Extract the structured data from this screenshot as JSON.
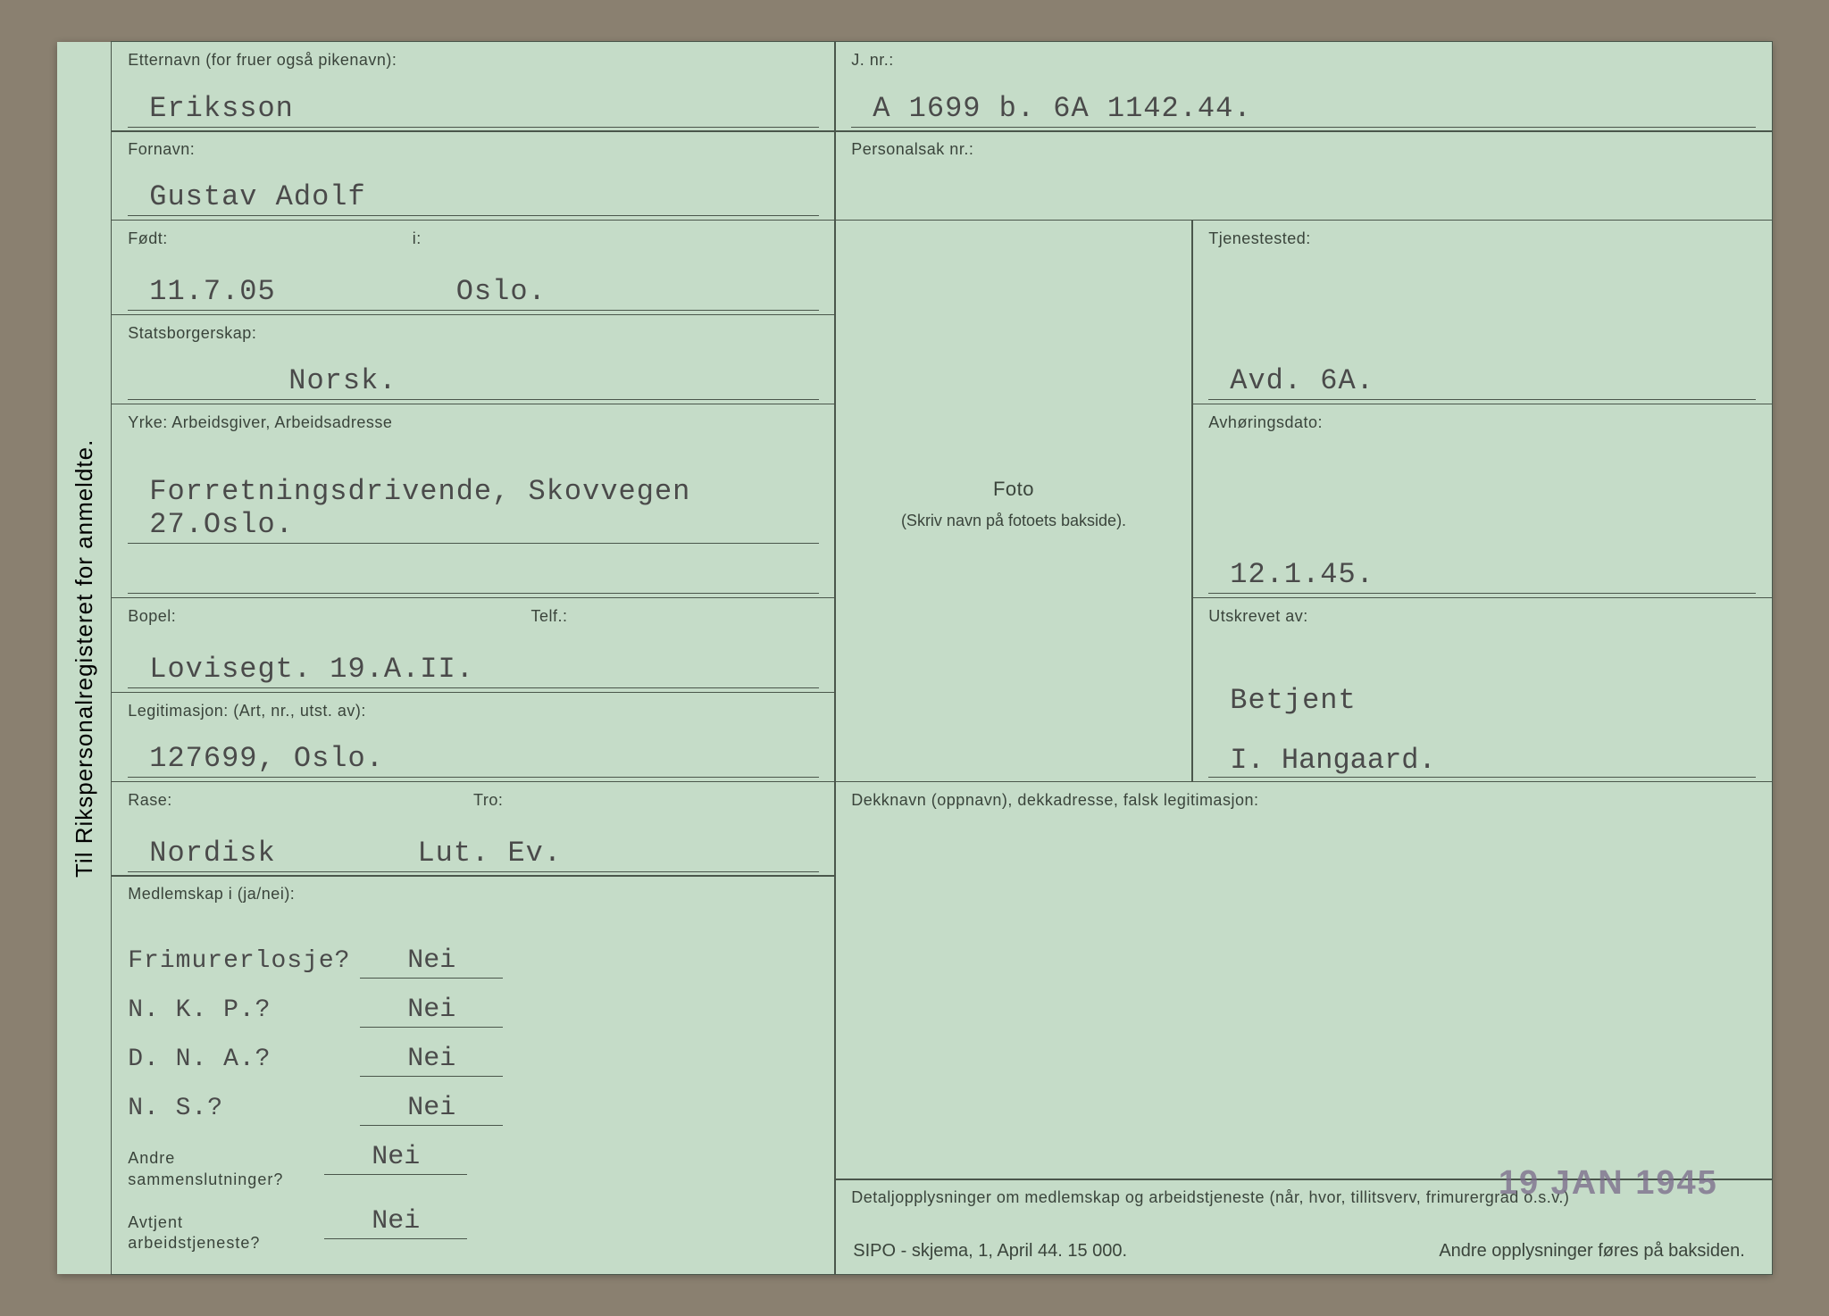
{
  "colors": {
    "card_bg": "#c5dcc8",
    "page_bg": "#8a8070",
    "rule": "#4a564b",
    "label_text": "#3a443b",
    "typed_text": "#4a4a4a",
    "stamp": "#7a6a8a"
  },
  "typography": {
    "label_fontsize_pt": 14,
    "value_font": "Courier New",
    "value_fontsize_pt": 24,
    "stamp_fontsize_pt": 28
  },
  "verticalTitle": "Til Rikspersonalregisteret for anmeldte.",
  "fields": {
    "etternavn": {
      "label": "Etternavn (for fruer også pikenavn):",
      "value": "Eriksson"
    },
    "jnr": {
      "label": "J. nr.:",
      "value": "A 1699 b. 6A 1142.44."
    },
    "fornavn": {
      "label": "Fornavn:",
      "value": "Gustav Adolf"
    },
    "personalsak": {
      "label": "Personalsak nr.:",
      "value": ""
    },
    "fodt": {
      "label": "Født:",
      "value": "11.7.05"
    },
    "fodt_i": {
      "label": "i:",
      "value": "Oslo."
    },
    "tjenestested": {
      "label": "Tjenestested:",
      "value": "Avd. 6A."
    },
    "statsborgerskap": {
      "label": "Statsborgerskap:",
      "value": "Norsk."
    },
    "avhoringsdato": {
      "label": "Avhøringsdato:",
      "value": "12.1.45."
    },
    "yrke": {
      "label": "Yrke:    Arbeidsgiver, Arbeidsadresse",
      "value": "Forretningsdrivende, Skovvegen 27.Oslo."
    },
    "utskrevet": {
      "label": "Utskrevet av:",
      "value1": "Betjent",
      "value2": "I. Hangaard."
    },
    "bopel": {
      "label": "Bopel:",
      "value": "Lovisegt. 19.A.II."
    },
    "telf": {
      "label": "Telf.:",
      "value": ""
    },
    "legitimasjon": {
      "label": "Legitimasjon: (Art, nr., utst. av):",
      "value": "127699, Oslo."
    },
    "dekknavn": {
      "label": "Dekknavn (oppnavn), dekkadresse, falsk legitimasjon:",
      "value": ""
    },
    "rase": {
      "label": "Rase:",
      "value": "Nordisk"
    },
    "tro": {
      "label": "Tro:",
      "value": "Lut. Ev."
    },
    "foto": {
      "label": "Foto",
      "sublabel": "(Skriv navn på fotoets bakside)."
    }
  },
  "medlemskap": {
    "header": "Medlemskap i (ja/nei):",
    "rows": [
      {
        "label": "Frimurerlosje?",
        "value": "Nei",
        "label_style": "typed"
      },
      {
        "label": "N. K. P.?",
        "value": "Nei",
        "label_style": "typed"
      },
      {
        "label": "D. N. A.?",
        "value": "Nei",
        "label_style": "typed"
      },
      {
        "label": "N. S.?",
        "value": "Nei",
        "label_style": "typed"
      },
      {
        "label": "Andre\nsammenslutninger?",
        "value": "Nei",
        "label_style": "printed"
      },
      {
        "label": "Avtjent\narbeidstjeneste?",
        "value": "Nei",
        "label_style": "printed"
      }
    ]
  },
  "detaljer": {
    "label": "Detaljopplysninger om medlemskap og arbeidstjeneste (når, hvor, tillitsverv, frimurergrad o.s.v.)"
  },
  "footer": {
    "left": "SIPO - skjema, 1, April 44. 15 000.",
    "right": "Andre opplysninger føres på baksiden."
  },
  "stamp": "19 JAN 1945"
}
